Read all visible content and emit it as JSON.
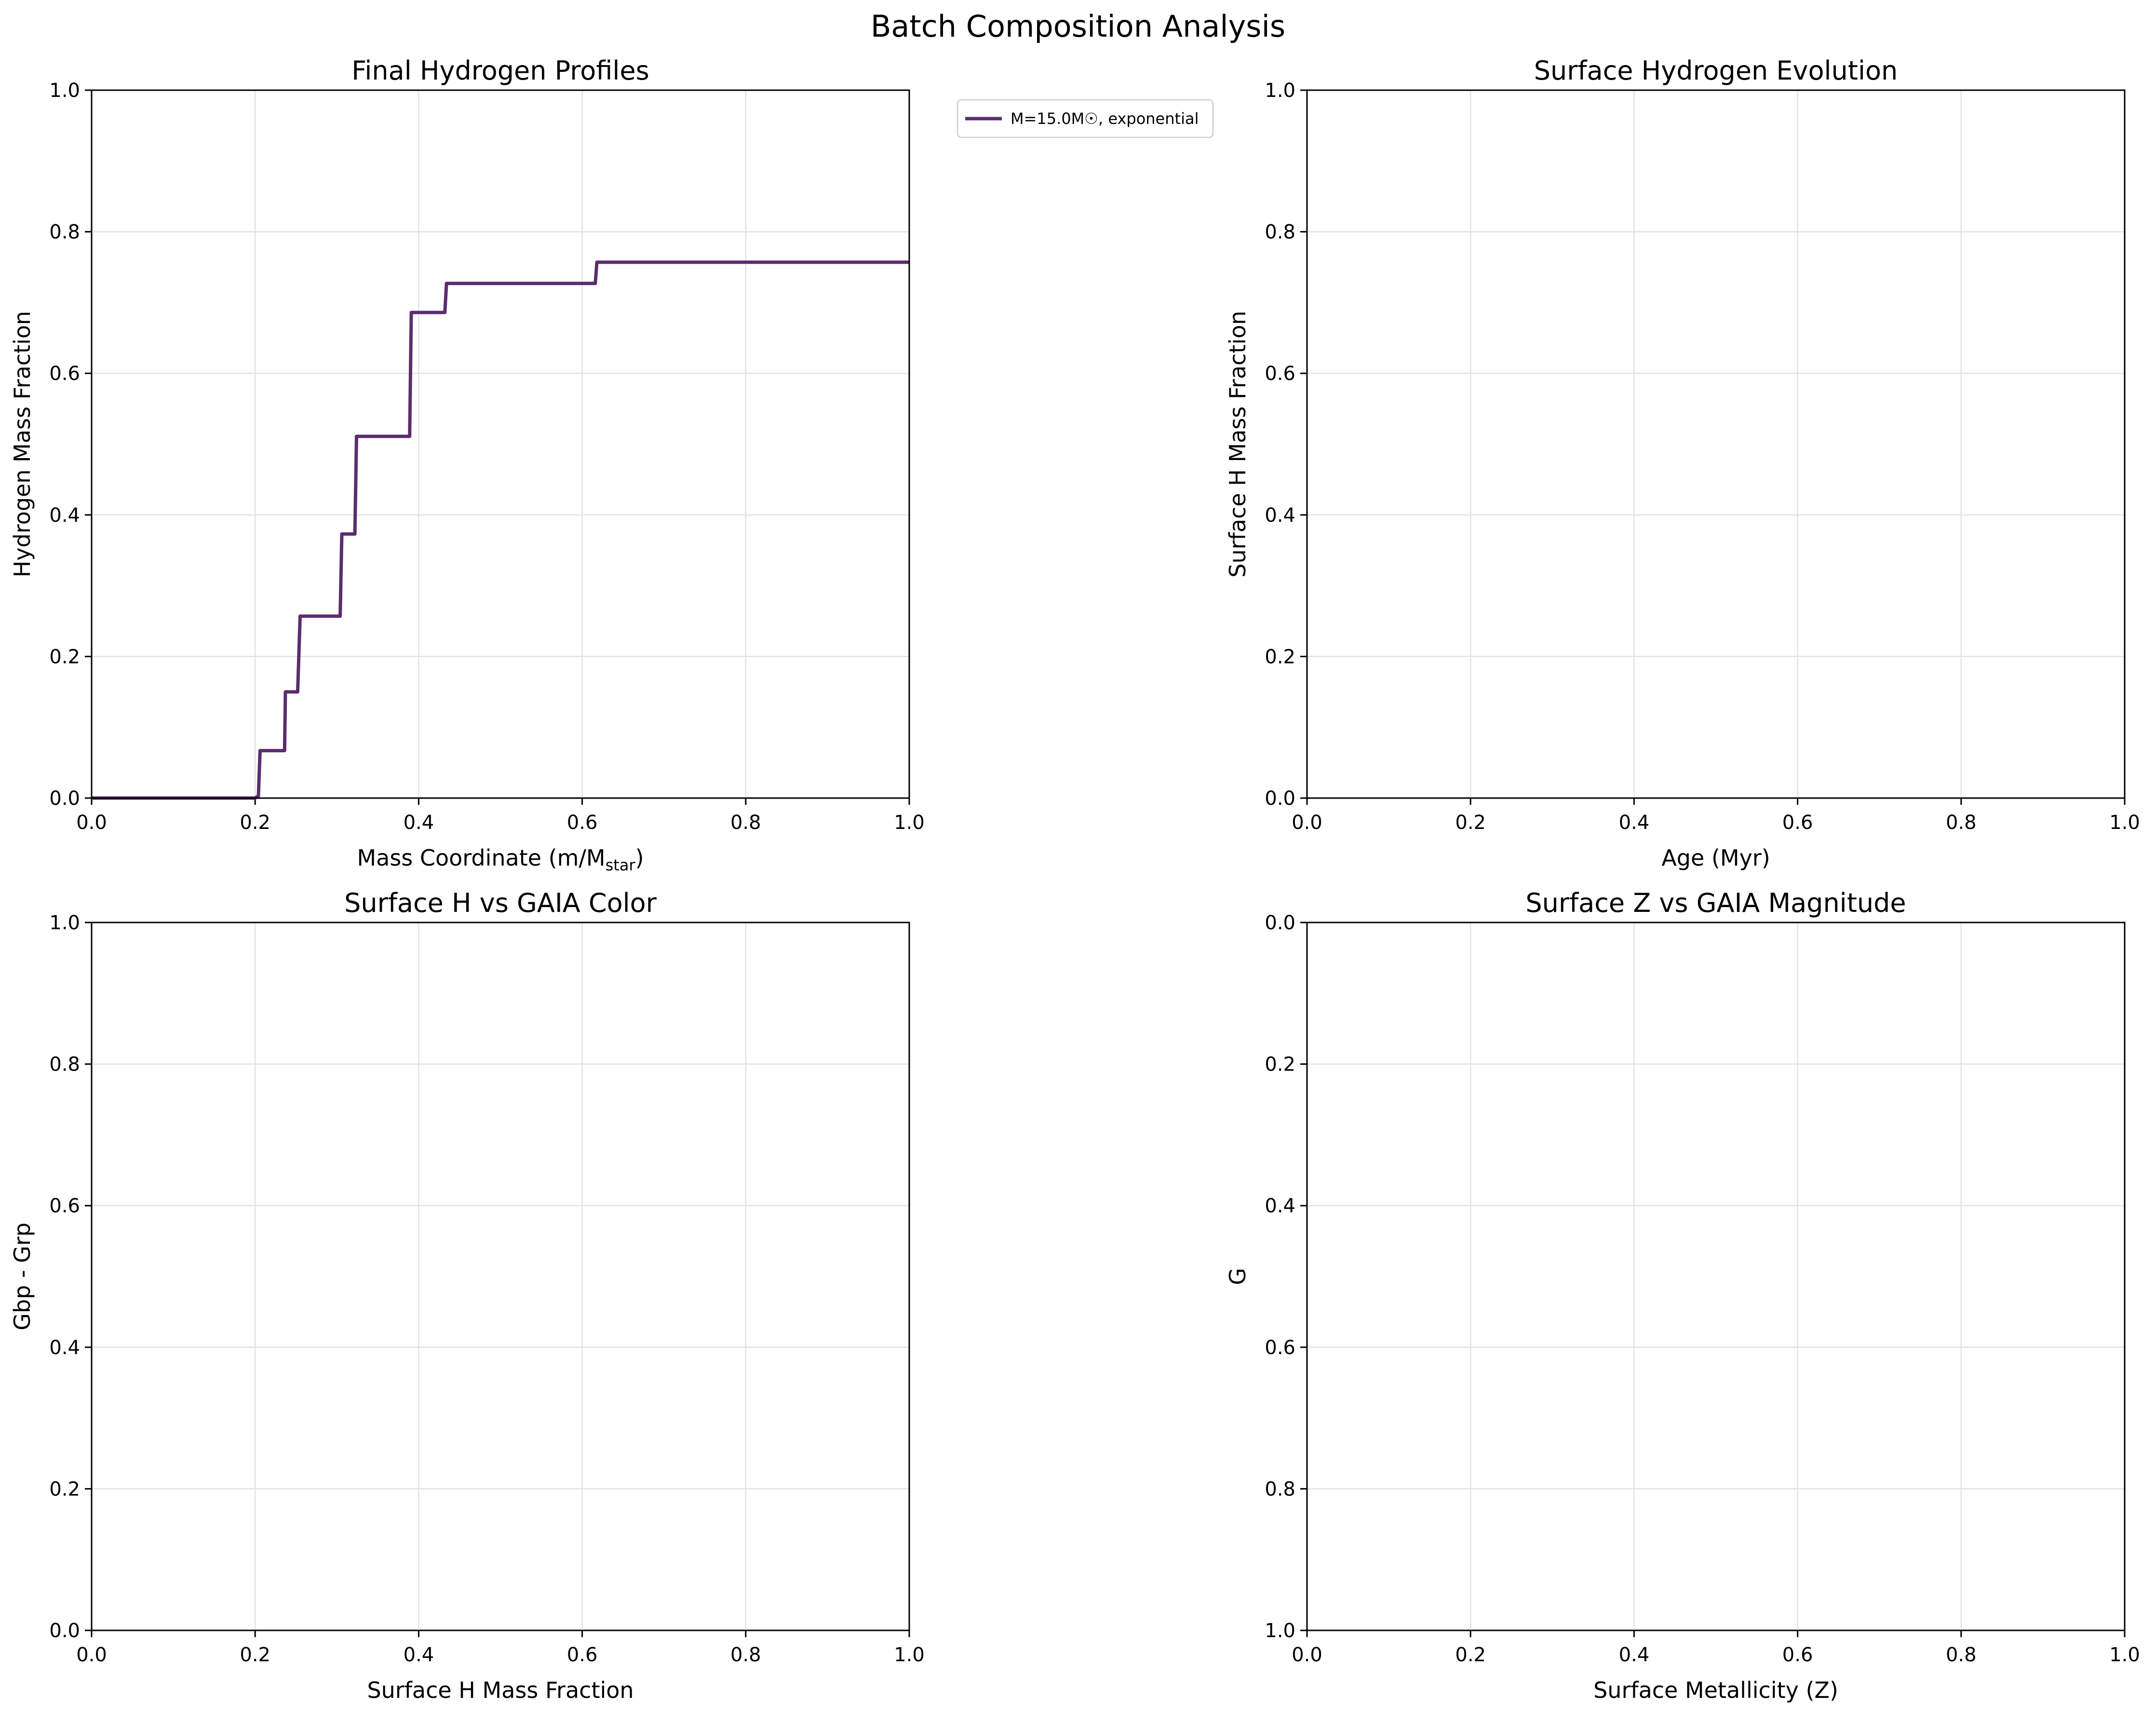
{
  "figure_title": "Batch Composition Analysis",
  "chart_data": [
    {
      "type": "line",
      "title": "Final Hydrogen Profiles",
      "xlabel": "Mass Coordinate (m/M",
      "xlabel_sub": "star",
      "xlabel_tail": ")",
      "ylabel": "Hydrogen Mass Fraction",
      "xlim": [
        0,
        1
      ],
      "ylim": [
        0,
        1
      ],
      "y_inverted": false,
      "xticks": [
        "0.0",
        "0.2",
        "0.4",
        "0.6",
        "0.8",
        "1.0"
      ],
      "yticks": [
        "0.0",
        "0.2",
        "0.4",
        "0.6",
        "0.8",
        "1.0"
      ],
      "grid": true,
      "legend_position": "outside-upper-right",
      "series": [
        {
          "name": "M=15.0M☉, exponential",
          "color": "#5b2c6f",
          "x": [
            0.0,
            0.2,
            0.204,
            0.206,
            0.236,
            0.237,
            0.252,
            0.255,
            0.304,
            0.306,
            0.322,
            0.324,
            0.389,
            0.391,
            0.432,
            0.434,
            0.616,
            0.618,
            1.0
          ],
          "y": [
            0.0,
            0.0,
            0.003,
            0.067,
            0.067,
            0.15,
            0.15,
            0.257,
            0.257,
            0.373,
            0.373,
            0.511,
            0.511,
            0.686,
            0.686,
            0.727,
            0.727,
            0.757,
            0.757
          ]
        }
      ]
    },
    {
      "type": "line",
      "title": "Surface Hydrogen Evolution",
      "xlabel": "Age (Myr)",
      "ylabel": "Surface H Mass Fraction",
      "xlim": [
        0,
        1
      ],
      "ylim": [
        0,
        1
      ],
      "y_inverted": false,
      "xticks": [
        "0.0",
        "0.2",
        "0.4",
        "0.6",
        "0.8",
        "1.0"
      ],
      "yticks": [
        "0.0",
        "0.2",
        "0.4",
        "0.6",
        "0.8",
        "1.0"
      ],
      "grid": true,
      "series": []
    },
    {
      "type": "scatter",
      "title": "Surface H vs GAIA Color",
      "xlabel": "Surface H Mass Fraction",
      "ylabel": "Gbp - Grp",
      "xlim": [
        0,
        1
      ],
      "ylim": [
        0,
        1
      ],
      "y_inverted": false,
      "xticks": [
        "0.0",
        "0.2",
        "0.4",
        "0.6",
        "0.8",
        "1.0"
      ],
      "yticks": [
        "0.0",
        "0.2",
        "0.4",
        "0.6",
        "0.8",
        "1.0"
      ],
      "grid": true,
      "series": []
    },
    {
      "type": "scatter",
      "title": "Surface Z vs GAIA Magnitude",
      "xlabel": "Surface Metallicity (Z)",
      "ylabel": "G",
      "xlim": [
        0,
        1
      ],
      "ylim": [
        0,
        1
      ],
      "y_inverted": true,
      "xticks": [
        "0.0",
        "0.2",
        "0.4",
        "0.6",
        "0.8",
        "1.0"
      ],
      "yticks": [
        "0.0",
        "0.2",
        "0.4",
        "0.6",
        "0.8",
        "1.0"
      ],
      "grid": true,
      "series": []
    }
  ]
}
